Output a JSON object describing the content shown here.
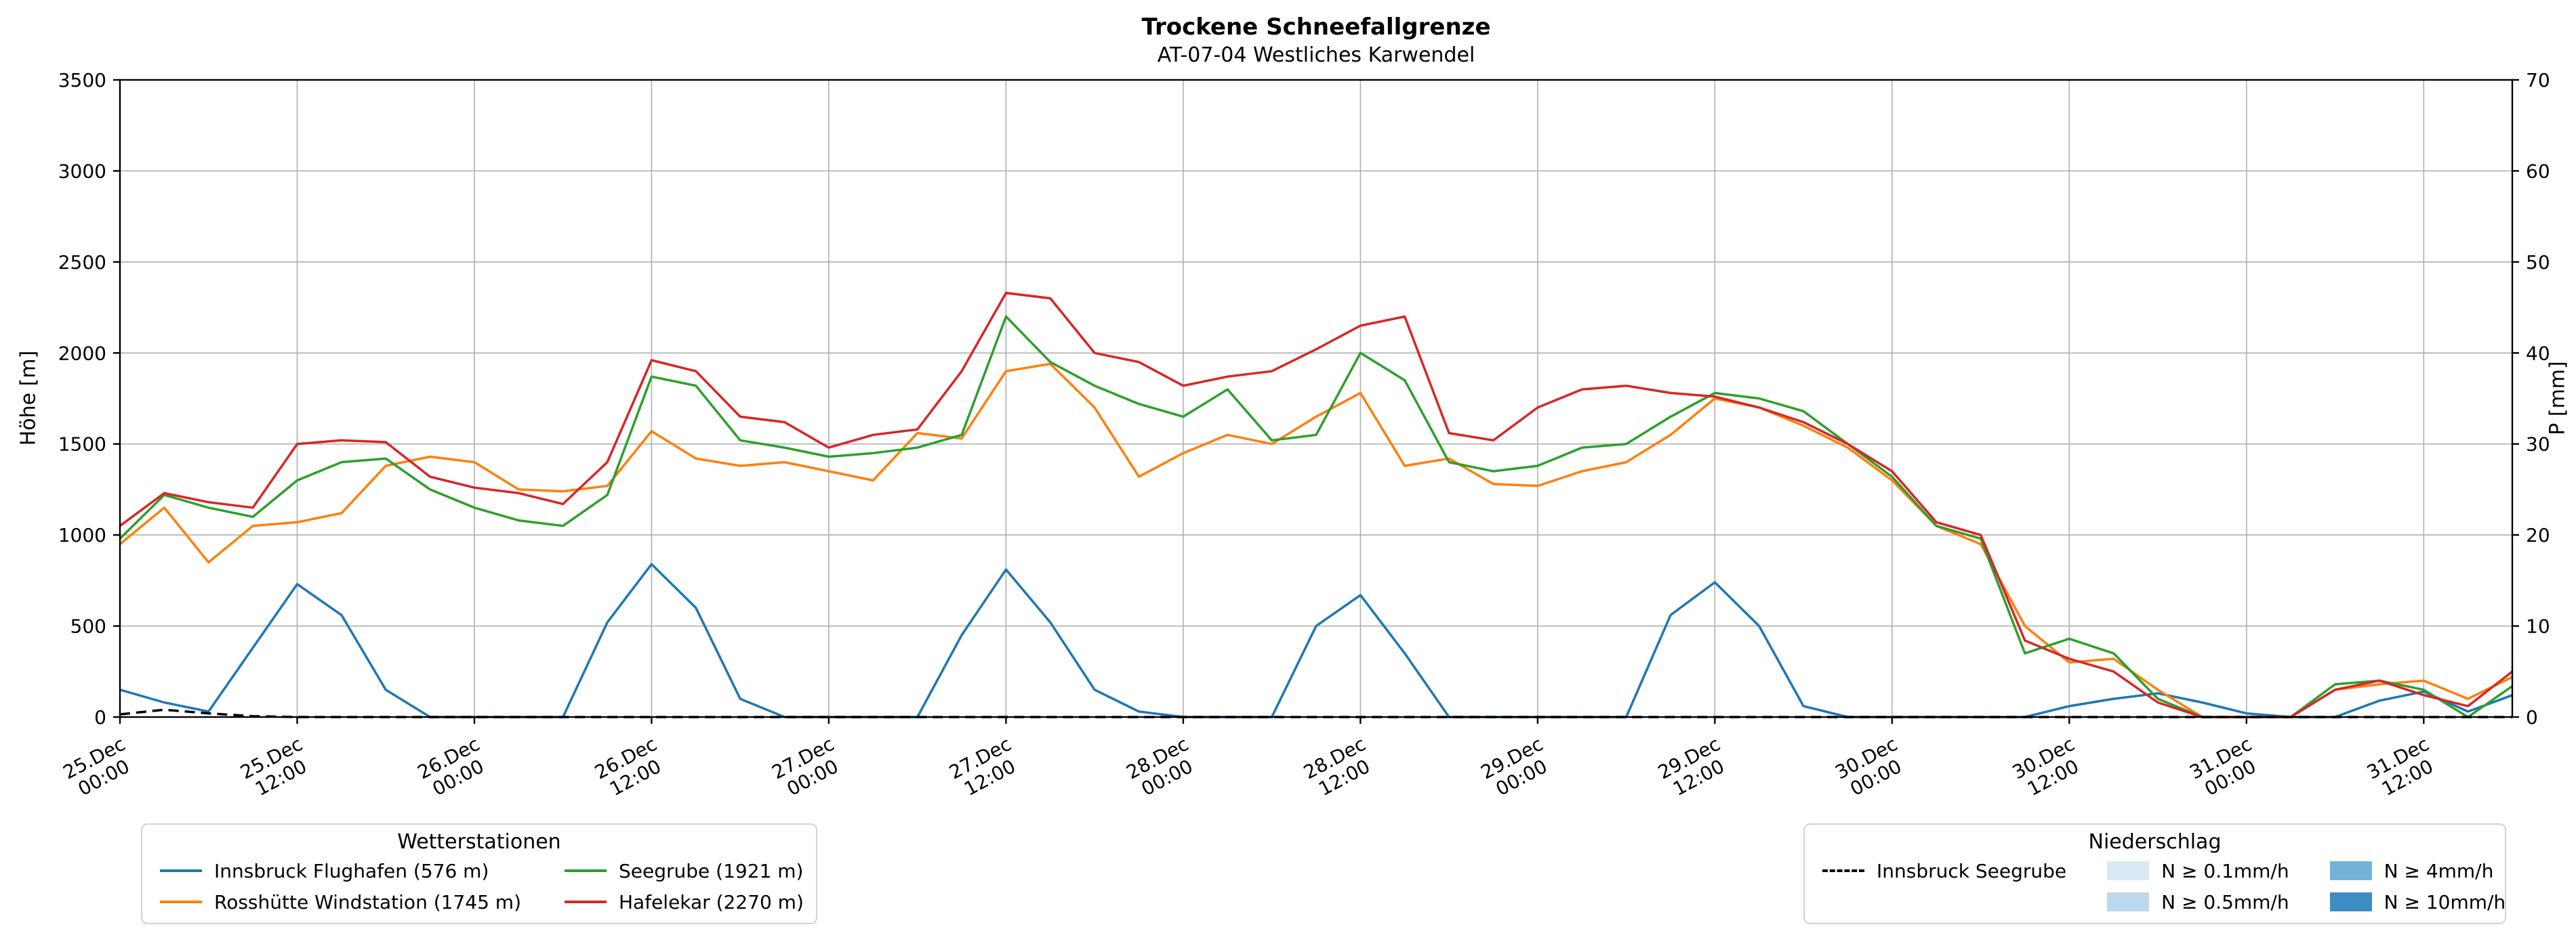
{
  "title": "Trockene Schneefallgrenze",
  "subtitle": "AT-07-04 Westliches Karwendel",
  "chart_data": {
    "type": "line",
    "title": "Trockene Schneefallgrenze",
    "subtitle": "AT-07-04 Westliches Karwendel",
    "ylabel_left": "Höhe [m]",
    "ylabel_right": "P [mm]",
    "ylim_left": [
      0,
      3500
    ],
    "ylim_right": [
      0,
      70
    ],
    "yticks_left": [
      0,
      500,
      1000,
      1500,
      2000,
      2500,
      3000,
      3500
    ],
    "yticks_right": [
      0,
      10,
      20,
      30,
      40,
      50,
      60,
      70
    ],
    "xlim": [
      0,
      162
    ],
    "grid": true,
    "grid_color": "#b0b0b0",
    "xticks": [
      {
        "hour": 0,
        "line1": "25.Dec",
        "line2": "00:00"
      },
      {
        "hour": 12,
        "line1": "25.Dec",
        "line2": "12:00"
      },
      {
        "hour": 24,
        "line1": "26.Dec",
        "line2": "00:00"
      },
      {
        "hour": 36,
        "line1": "26.Dec",
        "line2": "12:00"
      },
      {
        "hour": 48,
        "line1": "27.Dec",
        "line2": "00:00"
      },
      {
        "hour": 60,
        "line1": "27.Dec",
        "line2": "12:00"
      },
      {
        "hour": 72,
        "line1": "28.Dec",
        "line2": "00:00"
      },
      {
        "hour": 84,
        "line1": "28.Dec",
        "line2": "12:00"
      },
      {
        "hour": 96,
        "line1": "29.Dec",
        "line2": "00:00"
      },
      {
        "hour": 108,
        "line1": "29.Dec",
        "line2": "12:00"
      },
      {
        "hour": 120,
        "line1": "30.Dec",
        "line2": "00:00"
      },
      {
        "hour": 132,
        "line1": "30.Dec",
        "line2": "12:00"
      },
      {
        "hour": 144,
        "line1": "31.Dec",
        "line2": "00:00"
      },
      {
        "hour": 156,
        "line1": "31.Dec",
        "line2": "12:00"
      }
    ],
    "x_hours": [
      0,
      3,
      6,
      9,
      12,
      15,
      18,
      21,
      24,
      27,
      30,
      33,
      36,
      39,
      42,
      45,
      48,
      51,
      54,
      57,
      60,
      63,
      66,
      69,
      72,
      75,
      78,
      81,
      84,
      87,
      90,
      93,
      96,
      99,
      102,
      105,
      108,
      111,
      114,
      117,
      120,
      123,
      126,
      129,
      132,
      135,
      138,
      141,
      144,
      147,
      150,
      153,
      156,
      159,
      162
    ],
    "series": [
      {
        "name": "Innsbruck Flughafen (576 m)",
        "color": "#1f77b4",
        "axis": "left",
        "dash": false,
        "values": [
          150,
          80,
          30,
          380,
          730,
          560,
          150,
          0,
          0,
          0,
          0,
          520,
          840,
          600,
          100,
          0,
          0,
          0,
          0,
          450,
          810,
          520,
          150,
          30,
          0,
          0,
          0,
          500,
          670,
          350,
          0,
          0,
          0,
          0,
          0,
          560,
          740,
          500,
          60,
          0,
          0,
          0,
          0,
          0,
          60,
          100,
          130,
          80,
          20,
          0,
          0,
          90,
          140,
          30,
          120
        ]
      },
      {
        "name": "Rosshütte Windstation (1745 m)",
        "color": "#ff7f0e",
        "axis": "left",
        "dash": false,
        "values": [
          950,
          1150,
          850,
          1050,
          1070,
          1120,
          1380,
          1430,
          1400,
          1250,
          1240,
          1270,
          1570,
          1420,
          1380,
          1400,
          1350,
          1300,
          1560,
          1530,
          1900,
          1940,
          1700,
          1320,
          1450,
          1550,
          1500,
          1650,
          1780,
          1380,
          1420,
          1280,
          1270,
          1350,
          1400,
          1550,
          1750,
          1700,
          1600,
          1480,
          1300,
          1050,
          950,
          500,
          300,
          320,
          150,
          0,
          0,
          0,
          150,
          180,
          200,
          100,
          220
        ]
      },
      {
        "name": "Seegrube (1921 m)",
        "color": "#2ca02c",
        "axis": "left",
        "dash": false,
        "values": [
          980,
          1220,
          1150,
          1100,
          1300,
          1400,
          1420,
          1250,
          1150,
          1080,
          1050,
          1220,
          1870,
          1820,
          1520,
          1480,
          1430,
          1450,
          1480,
          1550,
          2200,
          1950,
          1820,
          1720,
          1650,
          1800,
          1520,
          1550,
          2000,
          1850,
          1400,
          1350,
          1380,
          1480,
          1500,
          1650,
          1780,
          1750,
          1680,
          1500,
          1320,
          1050,
          980,
          350,
          430,
          350,
          100,
          0,
          0,
          0,
          180,
          200,
          150,
          0,
          170
        ]
      },
      {
        "name": "Hafelekar (2270 m)",
        "color": "#d62728",
        "axis": "left",
        "dash": false,
        "values": [
          1050,
          1230,
          1180,
          1150,
          1500,
          1520,
          1510,
          1320,
          1260,
          1230,
          1170,
          1400,
          1960,
          1900,
          1650,
          1620,
          1480,
          1550,
          1580,
          1900,
          2330,
          2300,
          2000,
          1950,
          1820,
          1870,
          1900,
          2020,
          2150,
          2200,
          1560,
          1520,
          1700,
          1800,
          1820,
          1780,
          1760,
          1700,
          1620,
          1500,
          1350,
          1070,
          1000,
          420,
          320,
          250,
          80,
          0,
          0,
          0,
          150,
          200,
          120,
          60,
          250
        ]
      },
      {
        "name": "Innsbruck Seegrube",
        "color": "#000000",
        "axis": "right",
        "dash": true,
        "values": [
          0.3,
          0.8,
          0.4,
          0.1,
          0,
          0,
          0,
          0,
          0,
          0,
          0,
          0,
          0,
          0,
          0,
          0,
          0,
          0,
          0,
          0,
          0,
          0,
          0,
          0,
          0,
          0,
          0,
          0,
          0,
          0,
          0,
          0,
          0,
          0,
          0,
          0,
          0,
          0,
          0,
          0,
          0,
          0,
          0,
          0,
          0,
          0,
          0,
          0,
          0,
          0,
          0,
          0,
          0,
          0,
          0
        ]
      }
    ]
  },
  "legends": {
    "stations": {
      "title": "Wetterstationen",
      "items": [
        {
          "label": "Innsbruck Flughafen (576 m)",
          "color": "#1f77b4"
        },
        {
          "label": "Rosshütte Windstation (1745 m)",
          "color": "#ff7f0e"
        },
        {
          "label": "Seegrube (1921 m)",
          "color": "#2ca02c"
        },
        {
          "label": "Hafelekar (2270 m)",
          "color": "#d62728"
        }
      ]
    },
    "precip": {
      "title": "Niederschlag",
      "line_item": {
        "label": "Innsbruck Seegrube",
        "color": "#000000"
      },
      "patch_items": [
        {
          "label": "N ≥ 0.1mm/h",
          "color": "#dbe9f6"
        },
        {
          "label": "N ≥ 0.5mm/h",
          "color": "#bdd7ec"
        },
        {
          "label": "N ≥ 4mm/h",
          "color": "#73b3d9"
        },
        {
          "label": "N ≥ 10mm/h",
          "color": "#3d8dc3"
        }
      ]
    }
  }
}
